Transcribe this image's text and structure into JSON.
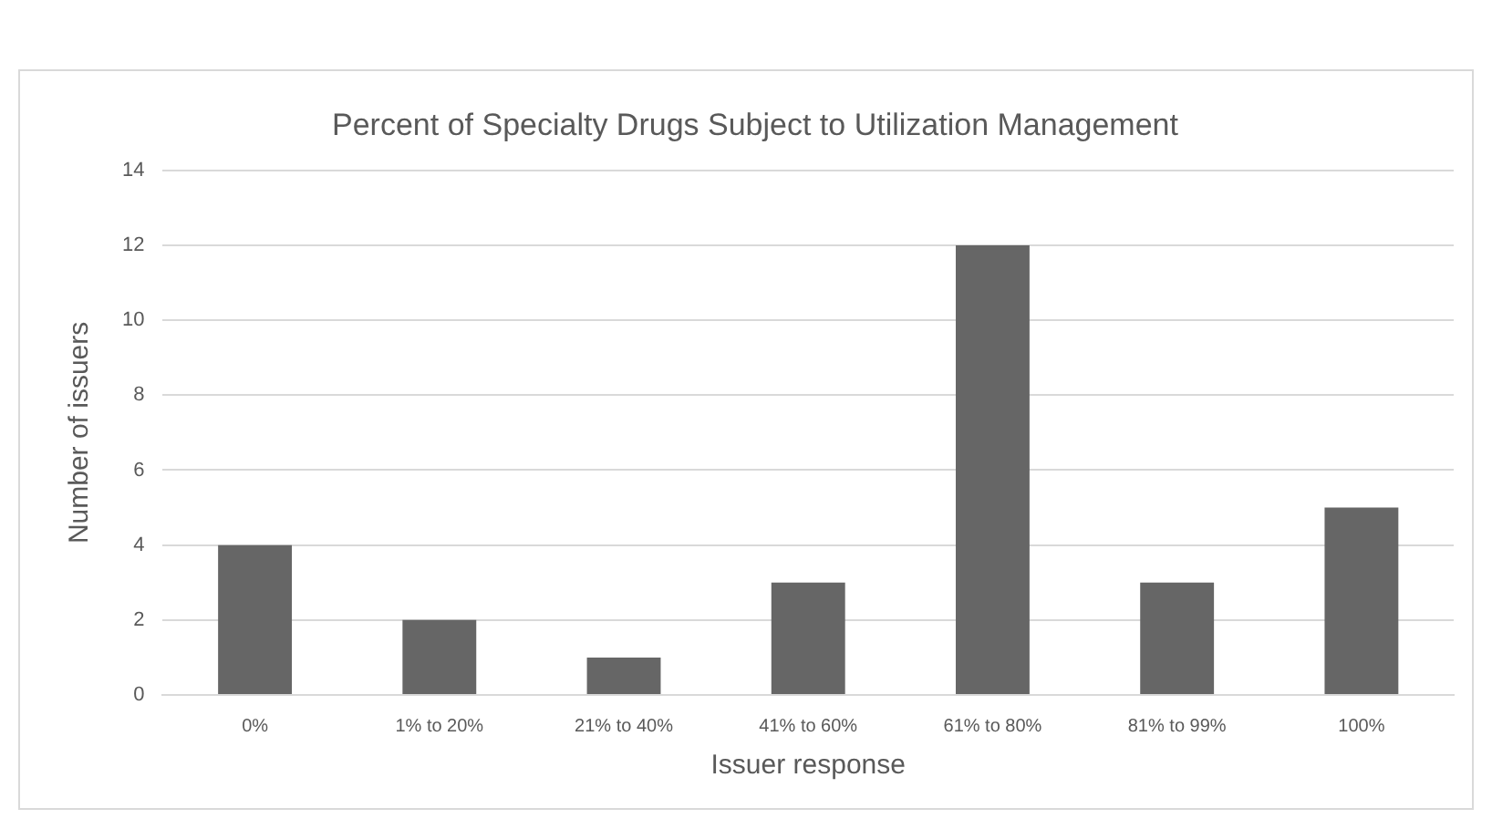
{
  "chart_data": {
    "type": "bar",
    "title": "Percent of Specialty Drugs Subject to Utilization Management",
    "xlabel": "Issuer response",
    "ylabel": "Number of issuers",
    "categories": [
      "0%",
      "1% to 20%",
      "21% to 40%",
      "41% to 60%",
      "61% to 80%",
      "81% to 99%",
      "100%"
    ],
    "values": [
      4,
      2,
      1,
      3,
      12,
      3,
      5
    ],
    "color": "#666666",
    "ylim": [
      0,
      14
    ],
    "yticks": [
      0,
      2,
      4,
      6,
      8,
      10,
      12,
      14
    ],
    "grid": "y",
    "legend": false
  }
}
